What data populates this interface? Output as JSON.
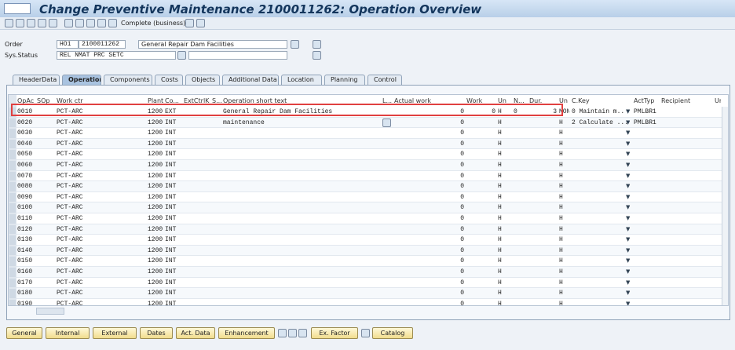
{
  "window": {
    "title": "Change Preventive Maintenance 2100011262: Operation Overview"
  },
  "toolbar": {
    "complete": "Complete (business)"
  },
  "header": {
    "order_label": "Order",
    "order_type": "HO1",
    "order_no": "2100011262",
    "order_text": "General Repair Dam Facilities",
    "status_label": "Sys.Status",
    "status": "REL  NMAT PRC  SETC"
  },
  "tabs": [
    "HeaderData",
    "Operations",
    "Components",
    "Costs",
    "Objects",
    "Additional Data",
    "Location",
    "Planning",
    "Control"
  ],
  "active_tab": "Operations",
  "table": {
    "columns": [
      {
        "key": "op",
        "label": "OpAc"
      },
      {
        "key": "sop",
        "label": "SOp"
      },
      {
        "key": "wc",
        "label": "Work ctr"
      },
      {
        "key": "plant",
        "label": "Plant"
      },
      {
        "key": "co",
        "label": "Co..."
      },
      {
        "key": "ext",
        "label": "ExtCtrlK"
      },
      {
        "key": "s",
        "label": "S..."
      },
      {
        "key": "text",
        "label": "Operation short text"
      },
      {
        "key": "l",
        "label": "L..."
      },
      {
        "key": "actual",
        "label": "Actual work"
      },
      {
        "key": "work",
        "label": "Work"
      },
      {
        "key": "un",
        "label": "Un"
      },
      {
        "key": "n",
        "label": "N..."
      },
      {
        "key": "dur",
        "label": "Dur."
      },
      {
        "key": "un2",
        "label": "Un"
      },
      {
        "key": "ckey",
        "label": "C.Key"
      },
      {
        "key": "act",
        "label": "ActTyp"
      },
      {
        "key": "rec",
        "label": "Recipient"
      },
      {
        "key": "uni",
        "label": "Uni"
      }
    ],
    "rows": [
      {
        "op": "0010",
        "wc": "PCT-ARC",
        "plant": "1200",
        "co": "EXT",
        "text": "General Repair Dam Facilities",
        "actual": "0",
        "work": "0",
        "un": "H",
        "n": "0",
        "dur": "3",
        "un2": "MON",
        "ckey": "0 Maintain m..",
        "act": "PMLBR1"
      },
      {
        "op": "0020",
        "wc": "PCT-ARC",
        "plant": "1200",
        "co": "INT",
        "text": "maintenance",
        "actual": "0",
        "un": "H",
        "un2": "H",
        "ckey": "2 Calculate ...",
        "act": "PMLBR1"
      },
      {
        "op": "0030",
        "wc": "PCT-ARC",
        "plant": "1200",
        "co": "INT",
        "actual": "0",
        "un": "H",
        "un2": "H"
      },
      {
        "op": "0040",
        "wc": "PCT-ARC",
        "plant": "1200",
        "co": "INT",
        "actual": "0",
        "un": "H",
        "un2": "H"
      },
      {
        "op": "0050",
        "wc": "PCT-ARC",
        "plant": "1200",
        "co": "INT",
        "actual": "0",
        "un": "H",
        "un2": "H"
      },
      {
        "op": "0060",
        "wc": "PCT-ARC",
        "plant": "1200",
        "co": "INT",
        "actual": "0",
        "un": "H",
        "un2": "H"
      },
      {
        "op": "0070",
        "wc": "PCT-ARC",
        "plant": "1200",
        "co": "INT",
        "actual": "0",
        "un": "H",
        "un2": "H"
      },
      {
        "op": "0080",
        "wc": "PCT-ARC",
        "plant": "1200",
        "co": "INT",
        "actual": "0",
        "un": "H",
        "un2": "H"
      },
      {
        "op": "0090",
        "wc": "PCT-ARC",
        "plant": "1200",
        "co": "INT",
        "actual": "0",
        "un": "H",
        "un2": "H"
      },
      {
        "op": "0100",
        "wc": "PCT-ARC",
        "plant": "1200",
        "co": "INT",
        "actual": "0",
        "un": "H",
        "un2": "H"
      },
      {
        "op": "0110",
        "wc": "PCT-ARC",
        "plant": "1200",
        "co": "INT",
        "actual": "0",
        "un": "H",
        "un2": "H"
      },
      {
        "op": "0120",
        "wc": "PCT-ARC",
        "plant": "1200",
        "co": "INT",
        "actual": "0",
        "un": "H",
        "un2": "H"
      },
      {
        "op": "0130",
        "wc": "PCT-ARC",
        "plant": "1200",
        "co": "INT",
        "actual": "0",
        "un": "H",
        "un2": "H"
      },
      {
        "op": "0140",
        "wc": "PCT-ARC",
        "plant": "1200",
        "co": "INT",
        "actual": "0",
        "un": "H",
        "un2": "H"
      },
      {
        "op": "0150",
        "wc": "PCT-ARC",
        "plant": "1200",
        "co": "INT",
        "actual": "0",
        "un": "H",
        "un2": "H"
      },
      {
        "op": "0160",
        "wc": "PCT-ARC",
        "plant": "1200",
        "co": "INT",
        "actual": "0",
        "un": "H",
        "un2": "H"
      },
      {
        "op": "0170",
        "wc": "PCT-ARC",
        "plant": "1200",
        "co": "INT",
        "actual": "0",
        "un": "H",
        "un2": "H"
      },
      {
        "op": "0180",
        "wc": "PCT-ARC",
        "plant": "1200",
        "co": "INT",
        "actual": "0",
        "un": "H",
        "un2": "H"
      },
      {
        "op": "0190",
        "wc": "PCT-ARC",
        "plant": "1200",
        "co": "INT",
        "actual": "0",
        "un": "H",
        "un2": "H"
      }
    ]
  },
  "buttons": [
    "General",
    "Internal",
    "External",
    "Dates",
    "Act. Data",
    "Enhancement",
    "Ex. Factor",
    "Catalog"
  ]
}
